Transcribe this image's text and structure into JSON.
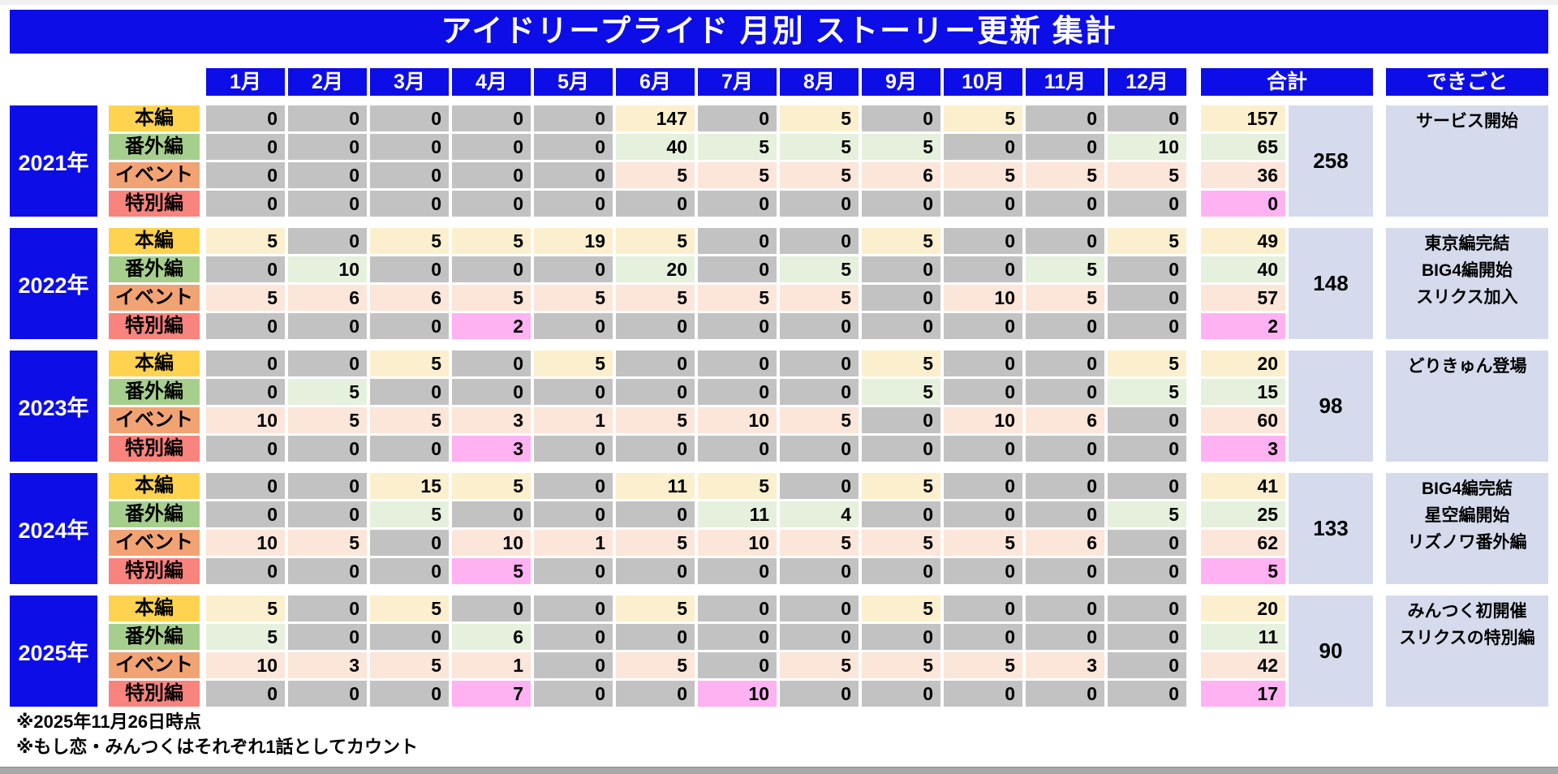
{
  "title": "アイドリープライド 月別 ストーリー更新 集計",
  "headers": {
    "months": [
      "1月",
      "2月",
      "3月",
      "4月",
      "5月",
      "6月",
      "7月",
      "8月",
      "9月",
      "10月",
      "11月",
      "12月"
    ],
    "total": "合計",
    "events": "できごと"
  },
  "colors": {
    "header_blue": "#0d0de8",
    "zero_gray": "#c2c2c2",
    "panel_lavender": "#d5dbec"
  },
  "categories": [
    {
      "name": "本編",
      "label_bg": "#ffd34f",
      "tint": "#fcefce"
    },
    {
      "name": "番外編",
      "label_bg": "#a6cf8d",
      "tint": "#e5f0dd"
    },
    {
      "name": "イベント",
      "label_bg": "#f2a373",
      "tint": "#fce5d9"
    },
    {
      "name": "特別編",
      "label_bg": "#f9837d",
      "tint": "#ffb2f2"
    }
  ],
  "years": [
    {
      "label": "2021年",
      "rows": [
        {
          "values": [
            0,
            0,
            0,
            0,
            0,
            147,
            0,
            5,
            0,
            5,
            0,
            0
          ],
          "total": 157
        },
        {
          "values": [
            0,
            0,
            0,
            0,
            0,
            40,
            5,
            5,
            5,
            0,
            0,
            10
          ],
          "total": 65
        },
        {
          "values": [
            0,
            0,
            0,
            0,
            0,
            5,
            5,
            5,
            6,
            5,
            5,
            5
          ],
          "total": 36
        },
        {
          "values": [
            0,
            0,
            0,
            0,
            0,
            0,
            0,
            0,
            0,
            0,
            0,
            0
          ],
          "total": 0
        }
      ],
      "year_total": 258,
      "events": [
        "サービス開始"
      ]
    },
    {
      "label": "2022年",
      "rows": [
        {
          "values": [
            5,
            0,
            5,
            5,
            19,
            5,
            0,
            0,
            5,
            0,
            0,
            5
          ],
          "total": 49
        },
        {
          "values": [
            0,
            10,
            0,
            0,
            0,
            20,
            0,
            5,
            0,
            0,
            5,
            0
          ],
          "total": 40
        },
        {
          "values": [
            5,
            6,
            6,
            5,
            5,
            5,
            5,
            5,
            0,
            10,
            5,
            0
          ],
          "total": 57
        },
        {
          "values": [
            0,
            0,
            0,
            2,
            0,
            0,
            0,
            0,
            0,
            0,
            0,
            0
          ],
          "total": 2
        }
      ],
      "year_total": 148,
      "events": [
        "東京編完結",
        "BIG4編開始",
        "スリクス加入"
      ]
    },
    {
      "label": "2023年",
      "rows": [
        {
          "values": [
            0,
            0,
            5,
            0,
            5,
            0,
            0,
            0,
            5,
            0,
            0,
            5
          ],
          "total": 20
        },
        {
          "values": [
            0,
            5,
            0,
            0,
            0,
            0,
            0,
            0,
            5,
            0,
            0,
            5
          ],
          "total": 15
        },
        {
          "values": [
            10,
            5,
            5,
            3,
            1,
            5,
            10,
            5,
            0,
            10,
            6,
            0
          ],
          "total": 60
        },
        {
          "values": [
            0,
            0,
            0,
            3,
            0,
            0,
            0,
            0,
            0,
            0,
            0,
            0
          ],
          "total": 3
        }
      ],
      "year_total": 98,
      "events": [
        "どりきゅん登場"
      ]
    },
    {
      "label": "2024年",
      "rows": [
        {
          "values": [
            0,
            0,
            15,
            5,
            0,
            11,
            5,
            0,
            5,
            0,
            0,
            0
          ],
          "total": 41
        },
        {
          "values": [
            0,
            0,
            5,
            0,
            0,
            0,
            11,
            4,
            0,
            0,
            0,
            5
          ],
          "total": 25
        },
        {
          "values": [
            10,
            5,
            0,
            10,
            1,
            5,
            10,
            5,
            5,
            5,
            6,
            0
          ],
          "total": 62
        },
        {
          "values": [
            0,
            0,
            0,
            5,
            0,
            0,
            0,
            0,
            0,
            0,
            0,
            0
          ],
          "total": 5
        }
      ],
      "year_total": 133,
      "events": [
        "BIG4編完結",
        "星空編開始",
        "リズノワ番外編"
      ]
    },
    {
      "label": "2025年",
      "rows": [
        {
          "values": [
            5,
            0,
            5,
            0,
            0,
            5,
            0,
            0,
            5,
            0,
            0,
            0
          ],
          "total": 20
        },
        {
          "values": [
            5,
            0,
            0,
            6,
            0,
            0,
            0,
            0,
            0,
            0,
            0,
            0
          ],
          "total": 11
        },
        {
          "values": [
            10,
            3,
            5,
            1,
            0,
            5,
            0,
            5,
            5,
            5,
            3,
            0
          ],
          "total": 42
        },
        {
          "values": [
            0,
            0,
            0,
            7,
            0,
            0,
            10,
            0,
            0,
            0,
            0,
            0
          ],
          "total": 17
        }
      ],
      "year_total": 90,
      "events": [
        "みんつく初開催",
        "スリクスの特別編"
      ]
    }
  ],
  "footnotes": [
    "※2025年11月26日時点",
    "※もし恋・みんつくはそれぞれ1話としてカウント"
  ]
}
